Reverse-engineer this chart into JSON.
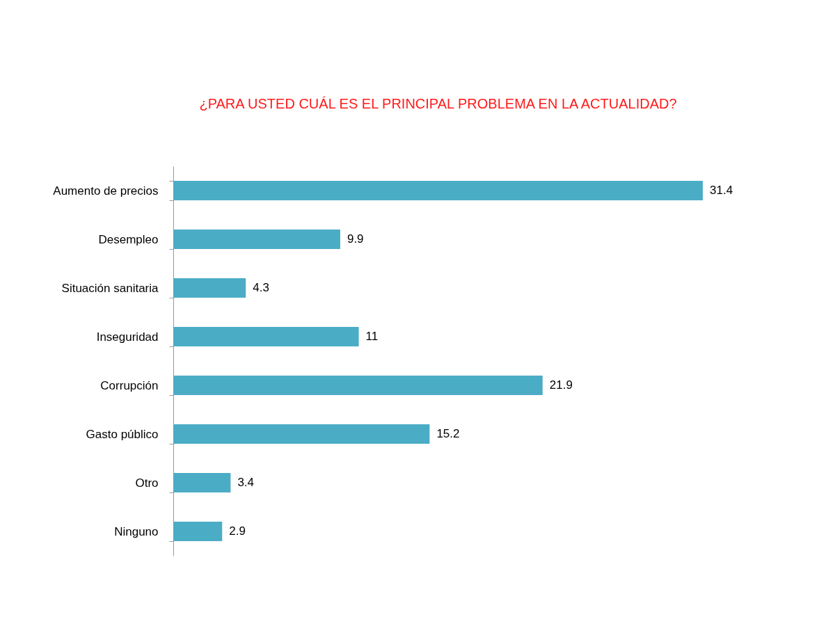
{
  "chart_data": {
    "type": "bar",
    "orientation": "horizontal",
    "title": "¿PARA USTED CUÁL ES EL PRINCIPAL PROBLEMA EN LA ACTUALIDAD?",
    "categories": [
      "Aumento de precios",
      "Desempleo",
      "Situación sanitaria",
      "Inseguridad",
      "Corrupción",
      "Gasto público",
      "Otro",
      "Ninguno"
    ],
    "values": [
      31.4,
      9.9,
      4.3,
      11,
      21.9,
      15.2,
      3.4,
      2.9
    ],
    "color": "#4bacc6",
    "data_labels": true
  }
}
